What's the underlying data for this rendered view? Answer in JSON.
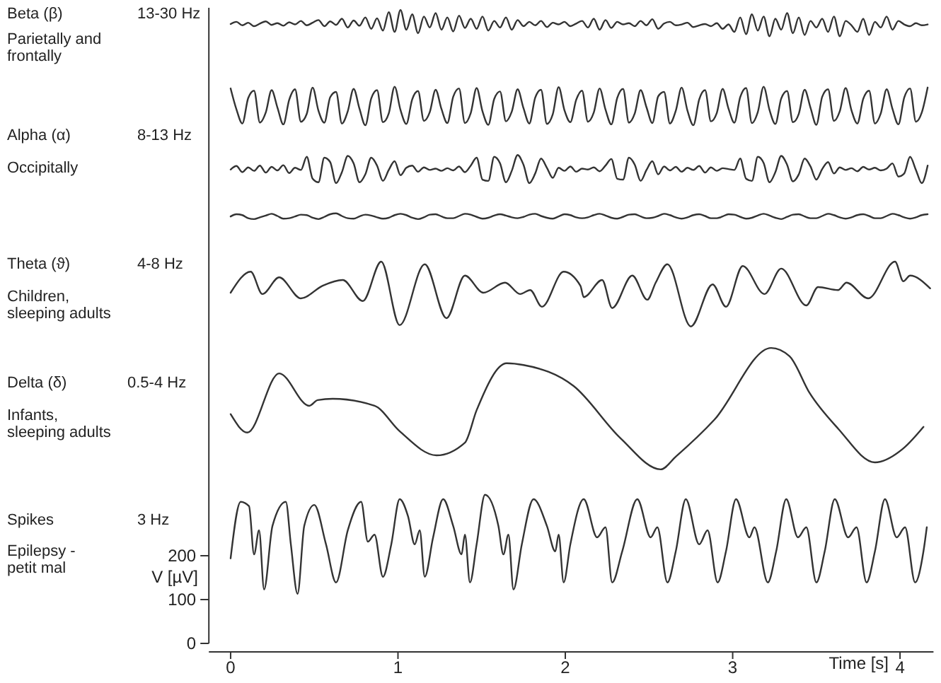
{
  "chart_data": {
    "type": "line",
    "xlabel": "Time [s]",
    "ylabel": "V [µV]",
    "xlim": [
      -0.13,
      4.2
    ],
    "xticks": [
      0,
      1,
      2,
      3,
      4
    ],
    "ylim": [
      0,
      1450
    ],
    "yticks": [
      0,
      100,
      200
    ],
    "annotations": [
      "Beta (β)",
      "13-30 Hz",
      "Parietally and frontally",
      "Alpha (α)",
      "8-13 Hz",
      "Occipitally",
      "Theta (ϑ)",
      "4-8 Hz",
      "Children, sleeping adults",
      "Delta (δ)",
      "0.5-4 Hz",
      "Infants, sleeping adults",
      "Spikes",
      "3 Hz",
      "Epilepsy - petit mal"
    ],
    "x": [
      0,
      0.035,
      0.07,
      0.105,
      0.14,
      0.175,
      0.21,
      0.245,
      0.28,
      0.315,
      0.35,
      0.385,
      0.42,
      0.455,
      0.49,
      0.525,
      0.56,
      0.595,
      0.63,
      0.665,
      0.7,
      0.735,
      0.77,
      0.805,
      0.84,
      0.875,
      0.91,
      0.945,
      0.98,
      1.015,
      1.05,
      1.085,
      1.12,
      1.155,
      1.19,
      1.225,
      1.26,
      1.295,
      1.33,
      1.365,
      1.4,
      1.435,
      1.47,
      1.505,
      1.54,
      1.575,
      1.61,
      1.645,
      1.68,
      1.715,
      1.75,
      1.785,
      1.82,
      1.855,
      1.89,
      1.925,
      1.96,
      1.995,
      2.03,
      2.065,
      2.1,
      2.135,
      2.17,
      2.205,
      2.24,
      2.275,
      2.31,
      2.345,
      2.38,
      2.415,
      2.45,
      2.485,
      2.52,
      2.555,
      2.59,
      2.625,
      2.66,
      2.695,
      2.73,
      2.765,
      2.8,
      2.835,
      2.87,
      2.905,
      2.94,
      2.975,
      3.01,
      3.045,
      3.08,
      3.115,
      3.15,
      3.185,
      3.22,
      3.255,
      3.29,
      3.325,
      3.36,
      3.395,
      3.43,
      3.465,
      3.5,
      3.535,
      3.57,
      3.605,
      3.64,
      3.675,
      3.71,
      3.745,
      3.78,
      3.815,
      3.85,
      3.885,
      3.92,
      3.955,
      3.99,
      4.025,
      4.06,
      4.095,
      4.13,
      4.165
    ],
    "series": [
      {
        "color": "#333333",
        "values": [
          1413,
          1418,
          1410,
          1416,
          1408,
          1414,
          1419,
          1411,
          1415,
          1409,
          1417,
          1412,
          1420,
          1410,
          1416,
          1422,
          1408,
          1419,
          1411,
          1425,
          1405,
          1421,
          1409,
          1428,
          1402,
          1426,
          1398,
          1440,
          1395,
          1445,
          1400,
          1435,
          1392,
          1430,
          1405,
          1438,
          1400,
          1428,
          1396,
          1432,
          1404,
          1425,
          1402,
          1430,
          1398,
          1420,
          1405,
          1428,
          1400,
          1422,
          1408,
          1418,
          1410,
          1420,
          1406,
          1416,
          1412,
          1418,
          1408,
          1414,
          1420,
          1405,
          1425,
          1400,
          1422,
          1404,
          1418,
          1412,
          1415,
          1408,
          1420,
          1410,
          1424,
          1402,
          1414,
          1418,
          1410,
          1412,
          1416,
          1406,
          1410,
          1413,
          1408,
          1415,
          1402,
          1412,
          1395,
          1428,
          1390,
          1435,
          1398,
          1430,
          1385,
          1425,
          1400,
          1438,
          1392,
          1428,
          1388,
          1420,
          1405,
          1425,
          1395,
          1430,
          1385,
          1420,
          1410,
          1395,
          1425,
          1388,
          1418,
          1405,
          1430,
          1400,
          1420,
          1412,
          1408,
          1415,
          1410,
          1412
        ]
      },
      {
        "color": "#333333",
        "values": [
          1266,
          1218,
          1186,
          1244,
          1261,
          1188,
          1211,
          1262,
          1222,
          1184,
          1240,
          1264,
          1190,
          1208,
          1268,
          1215,
          1188,
          1246,
          1258,
          1186,
          1214,
          1265,
          1220,
          1182,
          1243,
          1262,
          1189,
          1209,
          1270,
          1217,
          1185,
          1241,
          1260,
          1192,
          1212,
          1263,
          1219,
          1187,
          1247,
          1266,
          1187,
          1210,
          1267,
          1214,
          1183,
          1242,
          1259,
          1191,
          1213,
          1264,
          1221,
          1186,
          1245,
          1263,
          1185,
          1207,
          1269,
          1216,
          1189,
          1240,
          1261,
          1190,
          1211,
          1266,
          1218,
          1184,
          1244,
          1265,
          1188,
          1209,
          1262,
          1223,
          1187,
          1248,
          1258,
          1186,
          1215,
          1268,
          1215,
          1182,
          1241,
          1262,
          1191,
          1210,
          1265,
          1220,
          1188,
          1246,
          1267,
          1187,
          1212,
          1270,
          1217,
          1185,
          1243,
          1260,
          1189,
          1208,
          1263,
          1222,
          1183,
          1247,
          1264,
          1192,
          1214,
          1267,
          1216,
          1186,
          1242,
          1261,
          1186,
          1209,
          1264,
          1219,
          1184,
          1245,
          1266,
          1190,
          1211,
          1268
        ]
      },
      {
        "color": "#333333",
        "values": [
          1081,
          1089,
          1075,
          1086,
          1078,
          1090,
          1074,
          1087,
          1079,
          1091,
          1073,
          1085,
          1080,
          1110,
          1060,
          1052,
          1108,
          1098,
          1050,
          1075,
          1112,
          1095,
          1052,
          1070,
          1108,
          1090,
          1055,
          1080,
          1100,
          1068,
          1085,
          1090,
          1076,
          1086,
          1080,
          1083,
          1078,
          1084,
          1079,
          1088,
          1075,
          1090,
          1108,
          1058,
          1055,
          1110,
          1095,
          1052,
          1078,
          1114,
          1092,
          1050,
          1072,
          1106,
          1085,
          1062,
          1085,
          1078,
          1088,
          1076,
          1083,
          1081,
          1086,
          1077,
          1090,
          1105,
          1060,
          1058,
          1108,
          1092,
          1055,
          1080,
          1100,
          1070,
          1088,
          1079,
          1087,
          1076,
          1085,
          1080,
          1089,
          1074,
          1086,
          1078,
          1084,
          1082,
          1080,
          1106,
          1060,
          1055,
          1110,
          1096,
          1052,
          1075,
          1112,
          1092,
          1054,
          1070,
          1106,
          1088,
          1058,
          1082,
          1098,
          1072,
          1086,
          1080,
          1084,
          1077,
          1087,
          1081,
          1085,
          1079,
          1083,
          1095,
          1065,
          1072,
          1110,
          1080,
          1050,
          1090
        ]
      },
      {
        "color": "#333333",
        "values": [
          974,
          979,
          977,
          970,
          968,
          972,
          976,
          980,
          975,
          969,
          970,
          974,
          978,
          977,
          971,
          968,
          973,
          979,
          981,
          975,
          970,
          969,
          974,
          978,
          976,
          972,
          969,
          971,
          977,
          980,
          977,
          971,
          968,
          972,
          978,
          979,
          974,
          970,
          970,
          975,
          980,
          978,
          973,
          969,
          971,
          976,
          979,
          976,
          972,
          970,
          973,
          978,
          980,
          975,
          971,
          969,
          974,
          979,
          977,
          972,
          970,
          972,
          977,
          980,
          976,
          971,
          969,
          973,
          978,
          979,
          974,
          970,
          971,
          975,
          980,
          977,
          972,
          969,
          972,
          977,
          979,
          975,
          970,
          970,
          974,
          979,
          978,
          973,
          969,
          971,
          976,
          980,
          976,
          971,
          968,
          973,
          978,
          979,
          974,
          970,
          970,
          975,
          980,
          977,
          972,
          969,
          972,
          977,
          979,
          975,
          970,
          970,
          975,
          980,
          977,
          972,
          969,
          972,
          977,
          979
        ]
      },
      {
        "color": "#333333",
        "x": [
          0,
          0.12,
          0.19,
          0.29,
          0.42,
          0.55,
          0.67,
          0.79,
          0.9,
          1.01,
          1.16,
          1.29,
          1.4,
          1.51,
          1.64,
          1.73,
          1.79,
          1.86,
          1.99,
          2.09,
          2.11,
          2.22,
          2.28,
          2.4,
          2.49,
          2.54,
          2.61,
          2.75,
          2.88,
          2.96,
          3.06,
          3.19,
          3.29,
          3.44,
          3.51,
          3.63,
          3.68,
          3.81,
          3.97,
          4.02,
          4.06,
          4.18
        ],
        "values": [
          800,
          848,
          797,
          835,
          787,
          816,
          829,
          781,
          871,
          726,
          865,
          742,
          839,
          800,
          823,
          797,
          806,
          768,
          848,
          816,
          790,
          829,
          765,
          839,
          784,
          823,
          865,
          723,
          819,
          768,
          861,
          797,
          855,
          771,
          813,
          806,
          823,
          787,
          871,
          826,
          839,
          810
        ]
      },
      {
        "color": "#333333",
        "x": [
          0,
          0.1,
          0.29,
          0.47,
          0.52,
          0.61,
          0.86,
          1.01,
          1.23,
          1.4,
          1.47,
          1.65,
          1.75,
          2.05,
          2.33,
          2.57,
          2.66,
          2.89,
          3.23,
          3.34,
          3.46,
          3.63,
          3.85,
          4.02,
          4.14
        ],
        "values": [
          523,
          481,
          616,
          542,
          555,
          558,
          542,
          484,
          429,
          458,
          532,
          639,
          635,
          587,
          468,
          397,
          426,
          510,
          674,
          655,
          571,
          490,
          413,
          445,
          494
        ]
      },
      {
        "color": "#333333",
        "x": [
          0,
          0.06,
          0.11,
          0.14,
          0.17,
          0.2,
          0.25,
          0.33,
          0.36,
          0.4,
          0.44,
          0.5,
          0.57,
          0.63,
          0.7,
          0.78,
          0.82,
          0.86,
          0.91,
          0.96,
          1.01,
          1.06,
          1.1,
          1.13,
          1.16,
          1.21,
          1.27,
          1.33,
          1.38,
          1.4,
          1.43,
          1.47,
          1.52,
          1.6,
          1.63,
          1.66,
          1.69,
          1.74,
          1.81,
          1.89,
          1.94,
          1.96,
          1.99,
          2.03,
          2.11,
          2.19,
          2.24,
          2.28,
          2.34,
          2.43,
          2.51,
          2.55,
          2.61,
          2.66,
          2.72,
          2.8,
          2.85,
          2.91,
          2.96,
          3.02,
          3.1,
          3.13,
          3.21,
          3.26,
          3.32,
          3.39,
          3.44,
          3.5,
          3.55,
          3.61,
          3.69,
          3.74,
          3.8,
          3.85,
          3.91,
          3.98,
          4.03,
          4.09,
          4.14,
          4.16
        ],
        "values": [
          194,
          323,
          313,
          203,
          258,
          123,
          268,
          323,
          226,
          113,
          268,
          316,
          226,
          139,
          258,
          323,
          232,
          248,
          152,
          226,
          329,
          290,
          226,
          258,
          152,
          242,
          329,
          268,
          203,
          248,
          139,
          226,
          339,
          268,
          203,
          248,
          123,
          226,
          329,
          268,
          210,
          248,
          139,
          226,
          329,
          242,
          265,
          139,
          210,
          329,
          242,
          265,
          139,
          210,
          329,
          226,
          258,
          139,
          210,
          329,
          242,
          265,
          139,
          210,
          329,
          242,
          265,
          139,
          210,
          329,
          242,
          265,
          139,
          210,
          329,
          242,
          265,
          139,
          210,
          265
        ]
      }
    ]
  }
}
